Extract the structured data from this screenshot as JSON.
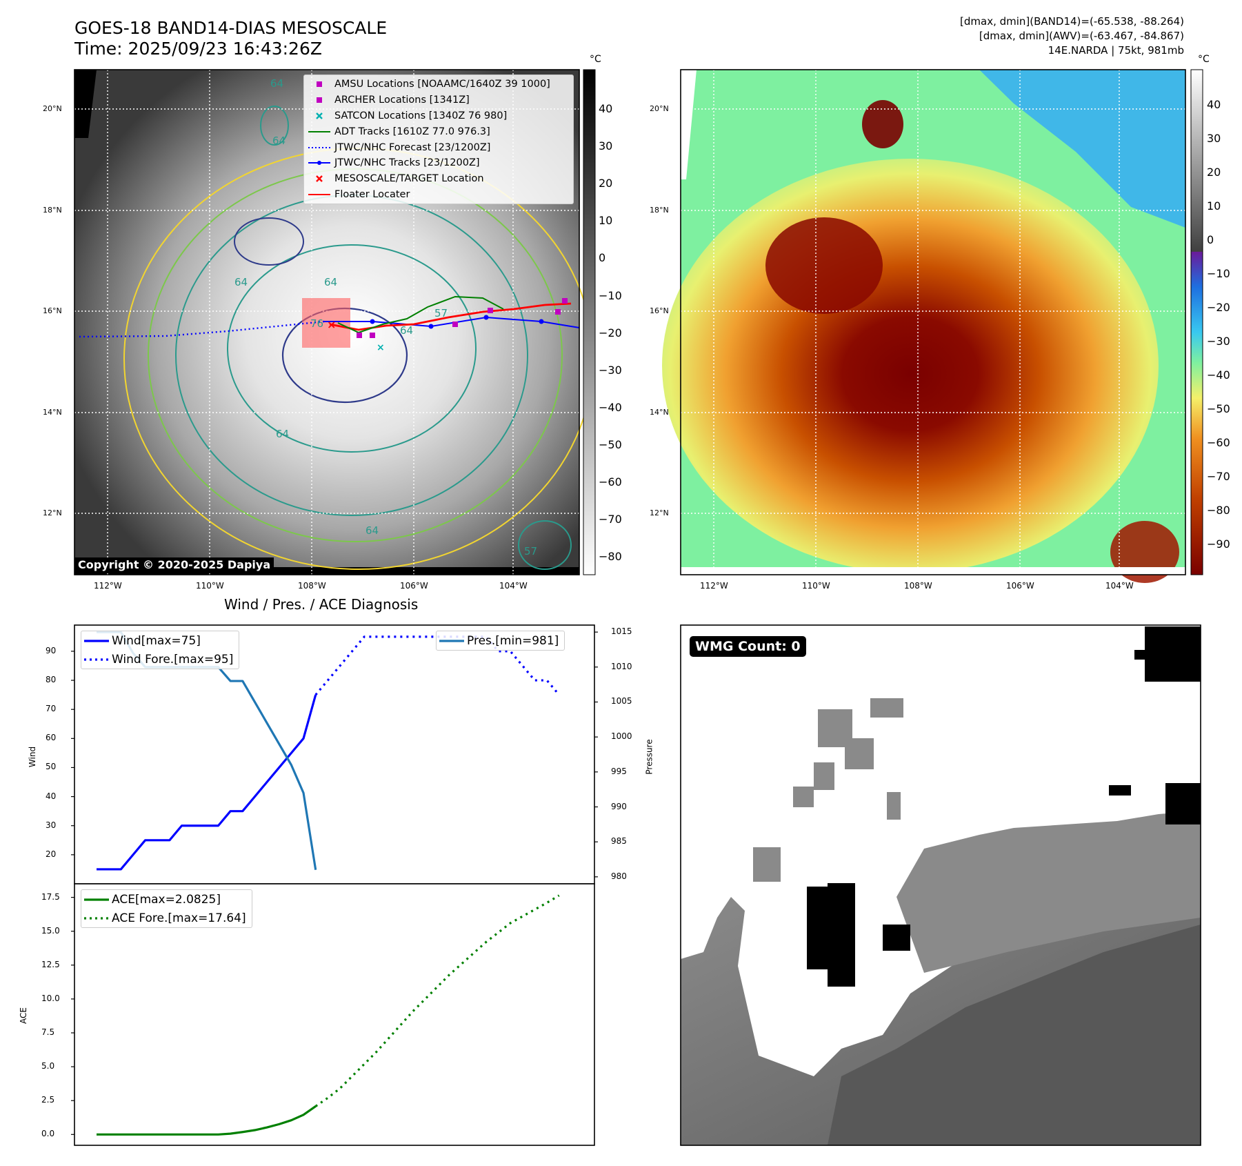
{
  "header": {
    "title_line1": "GOES-18 BAND14-DIAS MESOSCALE",
    "title_line2": "Time: 2025/09/23 16:43:26Z",
    "info_line1": "[dmax, dmin](BAND14)=(-65.538, -88.264)",
    "info_line2": "[dmax, dmin](AWV)=(-63.467, -84.867)",
    "info_line3": "14E.NARDA | 75kt, 981mb"
  },
  "map_panels": {
    "lat_labels": [
      "20°N",
      "18°N",
      "16°N",
      "14°N",
      "12°N"
    ],
    "lon_labels": [
      "112°W",
      "110°W",
      "108°W",
      "106°W",
      "104°W"
    ],
    "colorbar_unit": "°C",
    "left_colorbar_ticks": [
      "40",
      "30",
      "20",
      "10",
      "0",
      "−10",
      "−20",
      "−30",
      "−40",
      "−50",
      "−60",
      "−70",
      "−80"
    ],
    "right_colorbar_ticks": [
      "40",
      "30",
      "20",
      "10",
      "0",
      "−10",
      "−20",
      "−30",
      "−40",
      "−50",
      "−60",
      "−70",
      "−80",
      "−90"
    ],
    "copyright": "Copyright © 2020-2025 Dapiya",
    "contour_labels": [
      "64",
      "64",
      "64",
      "64",
      "64",
      "64",
      "64",
      "76",
      "57",
      "57"
    ],
    "legend": [
      {
        "label": "AMSU Locations [NOAAMC/1640Z 39 1000]",
        "color": "#c000c0",
        "marker": "square"
      },
      {
        "label": "ARCHER Locations [1341Z]",
        "color": "#c000c0",
        "marker": "square"
      },
      {
        "label": "SATCON Locations [1340Z 76 980]",
        "color": "#00b0b0",
        "marker": "x"
      },
      {
        "label": "ADT Tracks [1610Z 77.0 976.3]",
        "color": "#008000",
        "marker": "line"
      },
      {
        "label": "JTWC/NHC Forecast [23/1200Z]",
        "color": "#0000ff",
        "marker": "dotted"
      },
      {
        "label": "JTWC/NHC Tracks [23/1200Z]",
        "color": "#0000ff",
        "marker": "line-dot"
      },
      {
        "label": "MESOSCALE/TARGET Location",
        "color": "#ff0000",
        "marker": "x"
      },
      {
        "label": "Floater Locater",
        "color": "#ff0000",
        "marker": "line"
      }
    ]
  },
  "wmg_panel": {
    "label": "WMG Count: 0"
  },
  "chart_data": [
    {
      "type": "line",
      "title": "Wind / Pres. / ACE Diagnosis",
      "ylabel": "Wind",
      "y2label": "Pressure",
      "ylim": [
        10,
        99
      ],
      "y2lim": [
        979,
        1016
      ],
      "yticks": [
        20,
        30,
        40,
        50,
        60,
        70,
        80,
        90
      ],
      "y2ticks": [
        980,
        985,
        990,
        995,
        1000,
        1005,
        1010,
        1015
      ],
      "series": [
        {
          "name": "Wind[max=75]",
          "color": "#0000ff",
          "style": "solid",
          "x": [
            0,
            1,
            2,
            3,
            4,
            5,
            6,
            7,
            8,
            9,
            10,
            11,
            12,
            13,
            14,
            15,
            16,
            17,
            18
          ],
          "values": [
            15,
            15,
            15,
            20,
            25,
            25,
            25,
            30,
            30,
            30,
            30,
            35,
            35,
            40,
            45,
            50,
            55,
            60,
            75
          ]
        },
        {
          "name": "Wind Fore.[max=95]",
          "color": "#0000ff",
          "style": "dotted",
          "x": [
            18,
            19,
            20,
            21,
            22,
            23,
            24,
            25,
            26,
            27,
            28,
            29,
            30,
            31,
            32,
            33,
            34,
            35,
            36,
            37,
            38
          ],
          "values": [
            75,
            80,
            85,
            90,
            95,
            95,
            95,
            95,
            95,
            95,
            95,
            95,
            95,
            95,
            95,
            90,
            90,
            85,
            80,
            80,
            75
          ]
        },
        {
          "name": "Pres.[min=981]",
          "color": "#1f77b4",
          "style": "solid",
          "axis": "y2",
          "x": [
            0,
            1,
            2,
            3,
            4,
            5,
            6,
            7,
            8,
            9,
            10,
            11,
            12,
            13,
            14,
            15,
            16,
            17,
            18
          ],
          "values": [
            1015,
            1015,
            1015,
            1012,
            1010,
            1010,
            1010,
            1010,
            1010,
            1010,
            1010,
            1008,
            1008,
            1005,
            1002,
            999,
            996,
            992,
            981
          ]
        }
      ]
    },
    {
      "type": "line",
      "ylabel": "ACE",
      "ylim": [
        -0.8,
        18.5
      ],
      "yticks": [
        0.0,
        2.5,
        5.0,
        7.5,
        10.0,
        12.5,
        15.0,
        17.5
      ],
      "series": [
        {
          "name": "ACE[max=2.0825]",
          "color": "#008000",
          "style": "solid",
          "x": [
            0,
            1,
            2,
            3,
            4,
            5,
            6,
            7,
            8,
            9,
            10,
            11,
            12,
            13,
            14,
            15,
            16,
            17,
            18
          ],
          "values": [
            0,
            0,
            0,
            0,
            0,
            0,
            0,
            0,
            0,
            0,
            0,
            0.06,
            0.18,
            0.32,
            0.52,
            0.76,
            1.05,
            1.45,
            2.08
          ]
        },
        {
          "name": "ACE Fore.[max=17.64]",
          "color": "#008000",
          "style": "dotted",
          "x": [
            18,
            19,
            20,
            21,
            22,
            23,
            24,
            25,
            26,
            27,
            28,
            29,
            30,
            31,
            32,
            33,
            34,
            35,
            36,
            37,
            38
          ],
          "values": [
            2.08,
            2.7,
            3.4,
            4.3,
            5.2,
            6.1,
            7.1,
            8.1,
            9.1,
            10.0,
            10.9,
            11.8,
            12.6,
            13.4,
            14.2,
            14.9,
            15.6,
            16.1,
            16.6,
            17.1,
            17.64
          ]
        }
      ]
    }
  ]
}
